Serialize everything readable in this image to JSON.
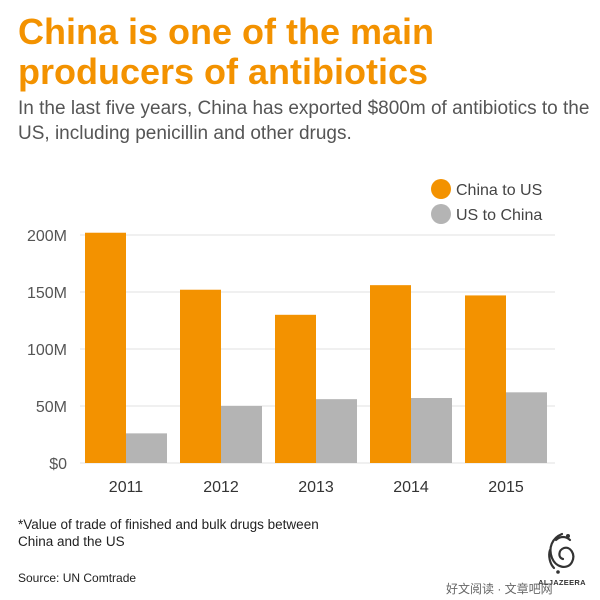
{
  "title": "China is one of the main producers of antibiotics",
  "subtitle": "In the last five years, China has exported $800m of antibiotics to the US, including penicillin and other drugs.",
  "footnote": "*Value of trade of finished and bulk drugs between China and the US",
  "source": "Source: UN Comtrade",
  "logo": {
    "text": "ALJAZEERA"
  },
  "watermark": "好文阅读 · 文章吧网",
  "colors": {
    "china_to_us": "#f39200",
    "us_to_china": "#b4b4b4",
    "grid": "#e2e2e2",
    "axis_text": "#555555"
  },
  "chart_data": {
    "type": "bar",
    "categories": [
      "2011",
      "2012",
      "2013",
      "2014",
      "2015"
    ],
    "series": [
      {
        "name": "China to US",
        "values": [
          202,
          152,
          130,
          156,
          147
        ]
      },
      {
        "name": "US to China",
        "values": [
          26,
          50,
          56,
          57,
          62
        ]
      }
    ],
    "ylim": [
      0,
      200
    ],
    "yticks": [
      0,
      50,
      100,
      150,
      200
    ],
    "ytick_labels": [
      "$0",
      "50M",
      "100M",
      "150M",
      "200M"
    ],
    "grid": true,
    "legend_position": "top-right",
    "title": "",
    "xlabel": "",
    "ylabel": ""
  }
}
